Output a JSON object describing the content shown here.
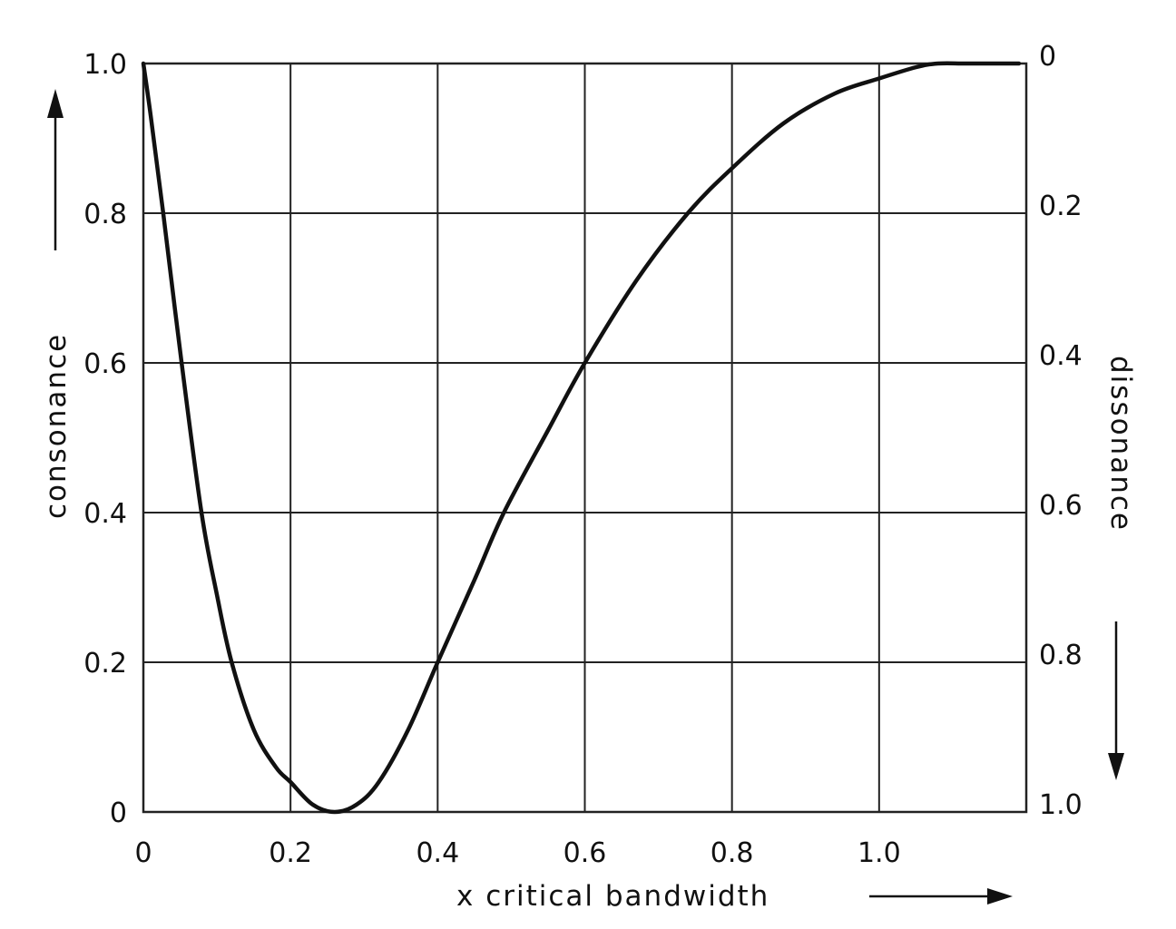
{
  "chart_data": {
    "type": "line",
    "title": "",
    "xlabel": "x critical bandwidth",
    "ylabel": "consonance",
    "ylabel_right": "dissonance",
    "xlim": [
      0,
      1.2
    ],
    "ylim": [
      0,
      1.0
    ],
    "grid": true,
    "legend": null,
    "x_ticks": [
      "0",
      "0.2",
      "0.4",
      "0.6",
      "0.8",
      "1.0"
    ],
    "y_ticks_left": [
      "0",
      "0.2",
      "0.4",
      "0.6",
      "0.8",
      "1.0"
    ],
    "y_ticks_right": [
      "1.0",
      "0.8",
      "0.6",
      "0.4",
      "0.2",
      "0"
    ],
    "series": [
      {
        "name": "consonance",
        "x": [
          0,
          0.01,
          0.027,
          0.052,
          0.079,
          0.1,
          0.12,
          0.15,
          0.18,
          0.2,
          0.23,
          0.26,
          0.29,
          0.32,
          0.36,
          0.4,
          0.45,
          0.49,
          0.55,
          0.6,
          0.67,
          0.74,
          0.8,
          0.87,
          0.94,
          1.0,
          1.05,
          1.08,
          1.12,
          1.19
        ],
        "values": [
          1.0,
          0.93,
          0.8,
          0.6,
          0.4,
          0.29,
          0.2,
          0.11,
          0.06,
          0.04,
          0.01,
          0.0,
          0.01,
          0.04,
          0.11,
          0.2,
          0.31,
          0.4,
          0.51,
          0.6,
          0.71,
          0.8,
          0.86,
          0.92,
          0.96,
          0.98,
          0.995,
          1.0,
          1.0,
          1.0
        ]
      }
    ],
    "annotations": [
      {
        "text": "↑",
        "position": "left axis arrow pointing up (consonance)"
      },
      {
        "text": "↓",
        "position": "right axis arrow pointing down (dissonance)"
      },
      {
        "text": "→",
        "position": "x-axis arrow pointing right"
      }
    ]
  },
  "labels": {
    "xlabel": "x critical bandwidth",
    "ylabel_left": "consonance",
    "ylabel_right": "dissonance"
  },
  "colors": {
    "line": "#111111",
    "grid": "#222222",
    "background": "#ffffff"
  }
}
